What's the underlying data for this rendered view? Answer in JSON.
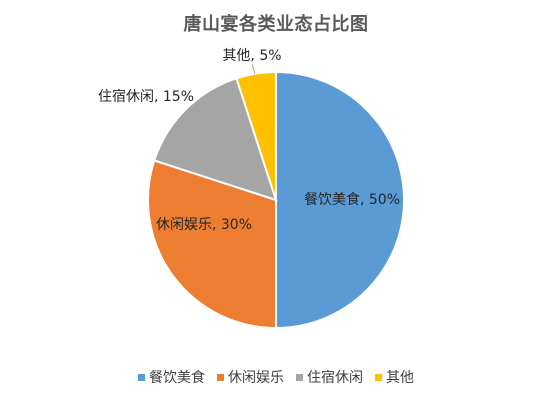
{
  "chart_data": {
    "type": "pie",
    "title": "唐山宴各类业态占比图",
    "categories": [
      "餐饮美食",
      "休闲娱乐",
      "住宿休闲",
      "其他"
    ],
    "values": [
      50,
      30,
      15,
      5
    ],
    "data_labels": [
      "餐饮美食, 50%",
      "休闲娱乐, 30%",
      "住宿休闲, 15%",
      "其他, 5%"
    ],
    "colors": [
      "#5B9BD5",
      "#ED7D31",
      "#A5A5A5",
      "#FFC000"
    ],
    "legend_placement": "bottom",
    "start_angle_deg": 0,
    "direction": "clockwise"
  }
}
